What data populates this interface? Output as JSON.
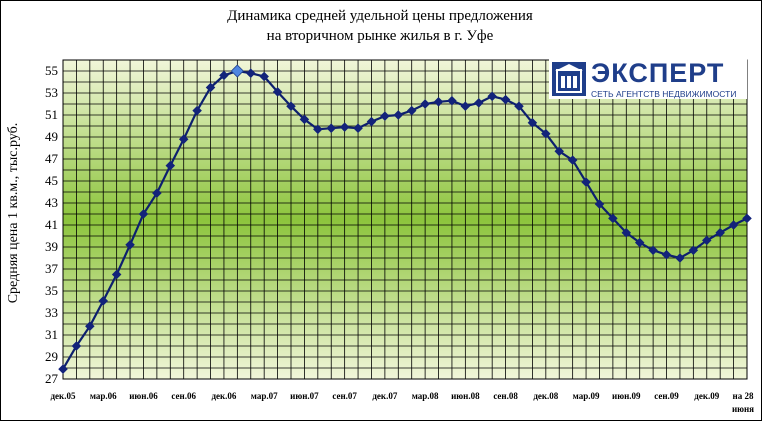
{
  "title_line1": "Динамика средней удельной цены предложения",
  "title_line2": "на вторичном рынке жилья в г. Уфе",
  "logo": {
    "name": "ЭКСПЕРТ",
    "tagline": "СЕТЬ АГЕНТСТВ НЕДВИЖИМОСТИ"
  },
  "colors": {
    "line": "#0d1f6e",
    "marker": "#13237a",
    "highlight": "#4f86e0",
    "grid": "#000000",
    "bg_center": "#8cc43c",
    "bg_edge": "#f1f6d9"
  },
  "chart_data": {
    "type": "line",
    "title": "Динамика средней удельной цены предложения на вторичном рынке жилья в г. Уфе",
    "ylabel": "Средняя цена 1 кв.м., тыс.руб.",
    "xlabel": "",
    "ylim": [
      27,
      56
    ],
    "y_ticks": [
      27,
      29,
      31,
      33,
      35,
      37,
      39,
      41,
      43,
      45,
      47,
      49,
      51,
      53,
      55
    ],
    "x_tick_labels": [
      "дек.05",
      "мар.06",
      "июн.06",
      "сен.06",
      "дек.06",
      "мар.07",
      "июн.07",
      "сен.07",
      "дек.07",
      "мар.08",
      "июн.08",
      "сен.08",
      "дек.08",
      "мар.09",
      "июн.09",
      "сен.09",
      "дек.09",
      "на 28 июня"
    ],
    "grid": true,
    "legend": "none",
    "highlight_index": 13,
    "series": [
      {
        "values": [
          27.9,
          30.0,
          31.8,
          34.1,
          36.5,
          39.2,
          42.0,
          43.9,
          46.4,
          48.8,
          51.4,
          53.5,
          54.6,
          55.0,
          54.8,
          54.5,
          53.1,
          51.8,
          50.6,
          49.7,
          49.8,
          49.9,
          49.8,
          50.4,
          50.9,
          51.0,
          51.4,
          52.0,
          52.2,
          52.3,
          51.8,
          52.1,
          52.7,
          52.4,
          51.8,
          50.3,
          49.3,
          47.7,
          46.9,
          44.9,
          42.9,
          41.6,
          40.3,
          39.4,
          38.7,
          38.3,
          38.0,
          38.7,
          39.6,
          40.3,
          41.0,
          41.6
        ]
      }
    ]
  }
}
